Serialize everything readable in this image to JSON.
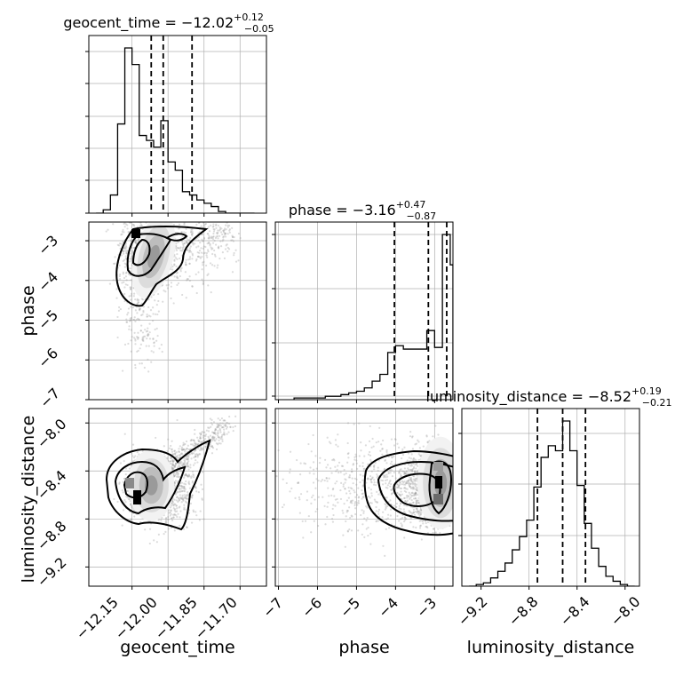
{
  "chart_data": [
    {
      "type": "histogram",
      "panel": "geocent_time-marginal",
      "title_base": "geocent_time = −12.02",
      "title_sup": "+0.12",
      "title_sub": "−0.05",
      "xlim": [
        -12.33,
        -11.59
      ],
      "bins": [
        -12.3,
        -12.27,
        -12.24,
        -12.21,
        -12.18,
        -12.15,
        -12.12,
        -12.09,
        -12.06,
        -12.03,
        -12.0,
        -11.97,
        -11.94,
        -11.91,
        -11.88,
        -11.85,
        -11.82,
        -11.79,
        -11.76,
        -11.73,
        -11.7,
        -11.67,
        -11.64
      ],
      "counts": [
        0,
        2,
        11,
        54,
        100,
        90,
        47,
        44,
        40,
        56,
        31,
        26,
        13,
        11,
        8,
        6,
        4,
        1,
        0,
        0,
        0,
        0
      ],
      "quantiles": [
        -12.07,
        -12.02,
        -11.9
      ]
    },
    {
      "type": "histogram",
      "panel": "phase-marginal",
      "title_base": "phase = −3.16",
      "title_sup": "+0.47",
      "title_sub": "−0.87",
      "xlim": [
        -7.08,
        -2.53
      ],
      "xticks": [
        -7,
        -6,
        -5,
        -4,
        -3
      ],
      "bins": [
        -6.6,
        -6.4,
        -6.2,
        -6.0,
        -5.8,
        -5.6,
        -5.4,
        -5.2,
        -5.0,
        -4.8,
        -4.6,
        -4.4,
        -4.2,
        -4.0,
        -3.8,
        -3.6,
        -3.4,
        -3.2,
        -3.0,
        -2.8,
        -2.6,
        -2.53
      ],
      "counts": [
        1,
        1,
        1,
        1,
        2,
        2,
        3,
        4,
        5,
        7,
        11,
        15,
        28,
        32,
        30,
        30,
        30,
        41,
        31,
        98,
        80
      ],
      "quantiles": [
        -4.03,
        -3.16,
        -2.69
      ]
    },
    {
      "type": "histogram",
      "panel": "luminosity_distance-marginal",
      "title_base": "luminosity_distance = −8.52",
      "title_sup": "+0.19",
      "title_sub": "−0.21",
      "xlim": [
        -9.36,
        -7.88
      ],
      "xticks": [
        -9.2,
        -8.8,
        -8.4,
        -8.0
      ],
      "bins": [
        -9.3,
        -9.24,
        -9.18,
        -9.12,
        -9.06,
        -9.0,
        -8.94,
        -8.88,
        -8.82,
        -8.76,
        -8.7,
        -8.64,
        -8.58,
        -8.52,
        -8.46,
        -8.4,
        -8.34,
        -8.28,
        -8.22,
        -8.16,
        -8.1,
        -8.04,
        -7.98,
        -7.92
      ],
      "counts": [
        0,
        1,
        2,
        5,
        9,
        14,
        22,
        30,
        40,
        60,
        78,
        85,
        82,
        100,
        82,
        61,
        38,
        23,
        12,
        6,
        3,
        1,
        0
      ],
      "quantiles": [
        -8.73,
        -8.52,
        -8.33
      ]
    },
    {
      "type": "scatter-contour",
      "panel": "geocent_time-vs-phase",
      "xlim": [
        -12.33,
        -11.59
      ],
      "ylim": [
        -7.0,
        -2.53
      ],
      "yticks": [
        -7,
        -6,
        -5,
        -4,
        -3
      ],
      "ylabel": "phase",
      "peak": [
        -12.1,
        -2.75
      ]
    },
    {
      "type": "scatter-contour",
      "panel": "geocent_time-vs-luminosity_distance",
      "xlim": [
        -12.33,
        -11.59
      ],
      "ylim": [
        -9.36,
        -7.88
      ],
      "xticks": [
        -12.15,
        -12.0,
        -11.85,
        -11.7
      ],
      "xticklabels": [
        "−12.15",
        "−12.00",
        "−11.85",
        "−11.70"
      ],
      "yticks": [
        -9.2,
        -8.8,
        -8.4,
        -8.0
      ],
      "xlabel": "geocent_time",
      "ylabel": "luminosity_distance",
      "peak": [
        -12.09,
        -8.58
      ]
    },
    {
      "type": "scatter-contour",
      "panel": "phase-vs-luminosity_distance",
      "xlim": [
        -7.08,
        -2.53
      ],
      "ylim": [
        -9.36,
        -7.88
      ],
      "xticks": [
        -7,
        -6,
        -5,
        -4,
        -3
      ],
      "xlabel": "phase",
      "peak": [
        -2.7,
        -8.5
      ]
    }
  ],
  "tick_text": {
    "geocent": [
      "−12.15",
      "−12.00",
      "−11.85",
      "−11.70"
    ],
    "phase": [
      "−7",
      "−6",
      "−5",
      "−4",
      "−3"
    ],
    "lum": [
      "−9.2",
      "−8.8",
      "−8.4",
      "−8.0"
    ]
  },
  "axis_labels": {
    "geocent": "geocent_time",
    "phase": "phase",
    "lum": "luminosity_distance"
  },
  "colors": {
    "line": "#000000",
    "grid": "#b0b0b0",
    "points": "#9a9a9a"
  }
}
